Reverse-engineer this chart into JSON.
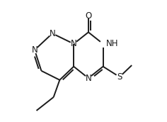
{
  "bg_color": "#ffffff",
  "line_color": "#1a1a1a",
  "line_width": 1.4,
  "font_size": 8.5,
  "xlim": [
    0.0,
    1.0
  ],
  "ylim": [
    0.0,
    1.0
  ]
}
